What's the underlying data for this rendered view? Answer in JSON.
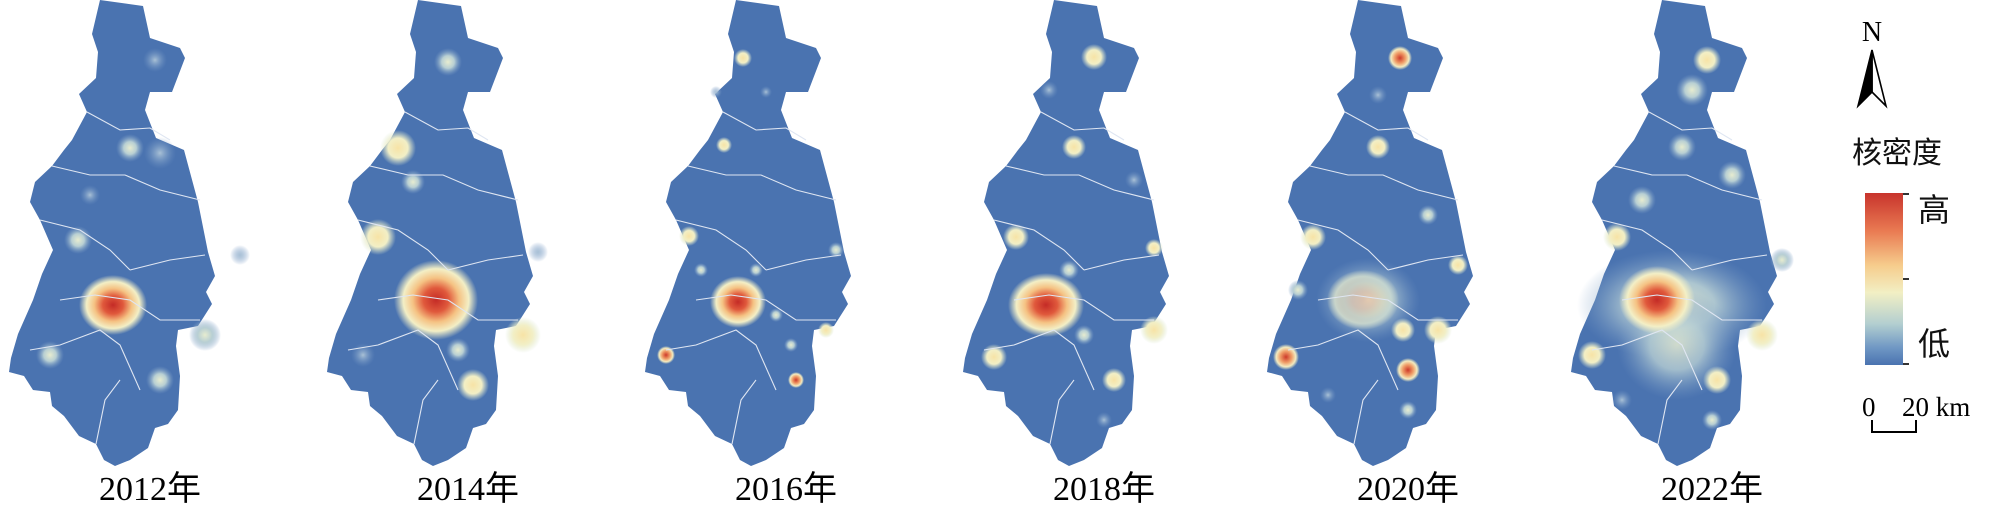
{
  "panels": [
    {
      "year_label": "2012年"
    },
    {
      "year_label": "2014年"
    },
    {
      "year_label": "2016年"
    },
    {
      "year_label": "2018年"
    },
    {
      "year_label": "2020年"
    },
    {
      "year_label": "2022年"
    }
  ],
  "legend": {
    "north_label": "N",
    "title": "核密度",
    "high_label": "高",
    "low_label": "低",
    "scale_zero": "0",
    "scale_value": "20 km"
  },
  "colors": {
    "background_density": "#4a73b0",
    "low": "#4a73b0",
    "mid": "#f2efc4",
    "high": "#c8342c",
    "district_border": "#dfe6f2"
  }
}
